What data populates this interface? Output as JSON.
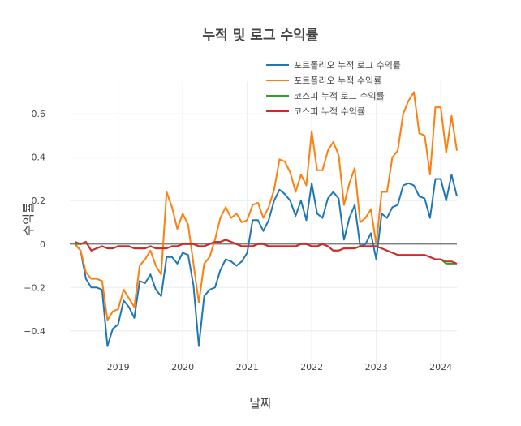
{
  "chart_data": {
    "type": "line",
    "title": "누적 및 로그 수익률",
    "xlabel": "날짜",
    "ylabel": "수익률",
    "xlim": [
      "2018-04-01",
      "2024-04-01"
    ],
    "ylim": [
      -0.55,
      0.75
    ],
    "y_ticks": [
      -0.4,
      -0.2,
      0,
      0.2,
      0.4,
      0.6
    ],
    "y_tick_labels": [
      "−0.4",
      "−0.2",
      "0",
      "0.2",
      "0.4",
      "0.6"
    ],
    "x_tick_labels": [
      "2019",
      "2020",
      "2021",
      "2022",
      "2023",
      "2024"
    ],
    "grid": true,
    "legend_position": "top-right",
    "zero_line": 0,
    "x": [
      "2018-05",
      "2018-06",
      "2018-07",
      "2018-08",
      "2018-09",
      "2018-10",
      "2018-11",
      "2018-12",
      "2019-01",
      "2019-02",
      "2019-03",
      "2019-04",
      "2019-05",
      "2019-06",
      "2019-07",
      "2019-08",
      "2019-09",
      "2019-10",
      "2019-11",
      "2019-12",
      "2020-01",
      "2020-02",
      "2020-03",
      "2020-04",
      "2020-05",
      "2020-06",
      "2020-07",
      "2020-08",
      "2020-09",
      "2020-10",
      "2020-11",
      "2020-12",
      "2021-01",
      "2021-02",
      "2021-03",
      "2021-04",
      "2021-05",
      "2021-06",
      "2021-07",
      "2021-08",
      "2021-09",
      "2021-10",
      "2021-11",
      "2021-12",
      "2022-01",
      "2022-02",
      "2022-03",
      "2022-04",
      "2022-05",
      "2022-06",
      "2022-07",
      "2022-08",
      "2022-09",
      "2022-10",
      "2022-11",
      "2022-12",
      "2023-01",
      "2023-02",
      "2023-03",
      "2023-04",
      "2023-05",
      "2023-06",
      "2023-07",
      "2023-08",
      "2023-09",
      "2023-10",
      "2023-11",
      "2023-12",
      "2024-01",
      "2024-02",
      "2024-03",
      "2024-04"
    ],
    "series": [
      {
        "name": "포트폴리오 누적 로그 수익률",
        "color": "#1f77b4",
        "values": [
          0.0,
          -0.03,
          -0.16,
          -0.2,
          -0.2,
          -0.21,
          -0.47,
          -0.39,
          -0.37,
          -0.26,
          -0.29,
          -0.34,
          -0.17,
          -0.18,
          -0.14,
          -0.21,
          -0.24,
          -0.06,
          -0.06,
          -0.09,
          -0.04,
          -0.05,
          -0.19,
          -0.47,
          -0.24,
          -0.21,
          -0.2,
          -0.12,
          -0.07,
          -0.08,
          -0.1,
          -0.08,
          -0.04,
          0.11,
          0.11,
          0.06,
          0.11,
          0.2,
          0.25,
          0.23,
          0.2,
          0.13,
          0.2,
          0.11,
          0.28,
          0.14,
          0.12,
          0.21,
          0.24,
          0.21,
          0.02,
          0.12,
          0.18,
          -0.01,
          0.0,
          0.05,
          -0.07,
          0.14,
          0.12,
          0.17,
          0.18,
          0.27,
          0.28,
          0.27,
          0.22,
          0.21,
          0.12,
          0.3,
          0.3,
          0.2,
          0.32,
          0.22
        ]
      },
      {
        "name": "포트폴리오 누적 수익률",
        "color": "#ff7f0e",
        "values": [
          0.0,
          -0.03,
          -0.13,
          -0.16,
          -0.16,
          -0.17,
          -0.35,
          -0.31,
          -0.3,
          -0.21,
          -0.25,
          -0.29,
          -0.1,
          -0.07,
          -0.03,
          -0.1,
          -0.14,
          0.24,
          0.17,
          0.07,
          0.14,
          0.09,
          -0.09,
          -0.27,
          -0.09,
          -0.06,
          0.02,
          0.12,
          0.17,
          0.12,
          0.14,
          0.1,
          0.11,
          0.18,
          0.19,
          0.12,
          0.17,
          0.25,
          0.39,
          0.38,
          0.33,
          0.24,
          0.32,
          0.27,
          0.52,
          0.34,
          0.34,
          0.43,
          0.47,
          0.41,
          0.18,
          0.28,
          0.35,
          0.1,
          0.12,
          0.16,
          0.0,
          0.24,
          0.24,
          0.4,
          0.43,
          0.6,
          0.66,
          0.7,
          0.51,
          0.5,
          0.32,
          0.63,
          0.63,
          0.42,
          0.59,
          0.43
        ]
      },
      {
        "name": "코스피 누적 로그 수익률",
        "color": "#2ca02c",
        "values": [
          0.0,
          0.0,
          0.01,
          -0.03,
          -0.02,
          -0.01,
          -0.02,
          -0.02,
          -0.01,
          -0.01,
          -0.01,
          -0.02,
          -0.02,
          -0.02,
          -0.01,
          -0.02,
          -0.02,
          -0.02,
          -0.01,
          -0.01,
          0.0,
          0.0,
          0.0,
          -0.01,
          -0.01,
          0.0,
          0.01,
          0.01,
          0.02,
          0.01,
          0.0,
          -0.01,
          -0.01,
          -0.01,
          0.0,
          0.0,
          -0.01,
          -0.01,
          -0.01,
          -0.01,
          -0.01,
          -0.01,
          0.0,
          0.0,
          -0.01,
          -0.01,
          0.0,
          -0.01,
          -0.03,
          -0.03,
          -0.02,
          -0.02,
          -0.02,
          -0.01,
          -0.01,
          -0.01,
          -0.01,
          -0.02,
          -0.03,
          -0.04,
          -0.05,
          -0.05,
          -0.05,
          -0.05,
          -0.05,
          -0.05,
          -0.06,
          -0.07,
          -0.07,
          -0.09,
          -0.09,
          -0.09
        ]
      },
      {
        "name": "코스피 누적 수익률",
        "color": "#d62728",
        "values": [
          0.01,
          0.0,
          0.01,
          -0.03,
          -0.02,
          -0.01,
          -0.02,
          -0.02,
          -0.01,
          -0.01,
          -0.01,
          -0.02,
          -0.02,
          -0.02,
          -0.01,
          -0.02,
          -0.02,
          -0.02,
          -0.01,
          -0.01,
          0.0,
          0.0,
          0.0,
          -0.01,
          -0.01,
          0.0,
          0.01,
          0.01,
          0.02,
          0.01,
          0.0,
          -0.01,
          -0.01,
          -0.01,
          0.0,
          0.0,
          -0.01,
          -0.01,
          -0.01,
          -0.01,
          -0.01,
          -0.01,
          0.0,
          0.0,
          -0.01,
          -0.01,
          0.0,
          -0.01,
          -0.03,
          -0.03,
          -0.02,
          -0.02,
          -0.02,
          -0.01,
          -0.01,
          -0.01,
          -0.01,
          -0.02,
          -0.03,
          -0.04,
          -0.05,
          -0.05,
          -0.05,
          -0.05,
          -0.05,
          -0.05,
          -0.06,
          -0.07,
          -0.07,
          -0.08,
          -0.08,
          -0.09
        ]
      }
    ]
  }
}
